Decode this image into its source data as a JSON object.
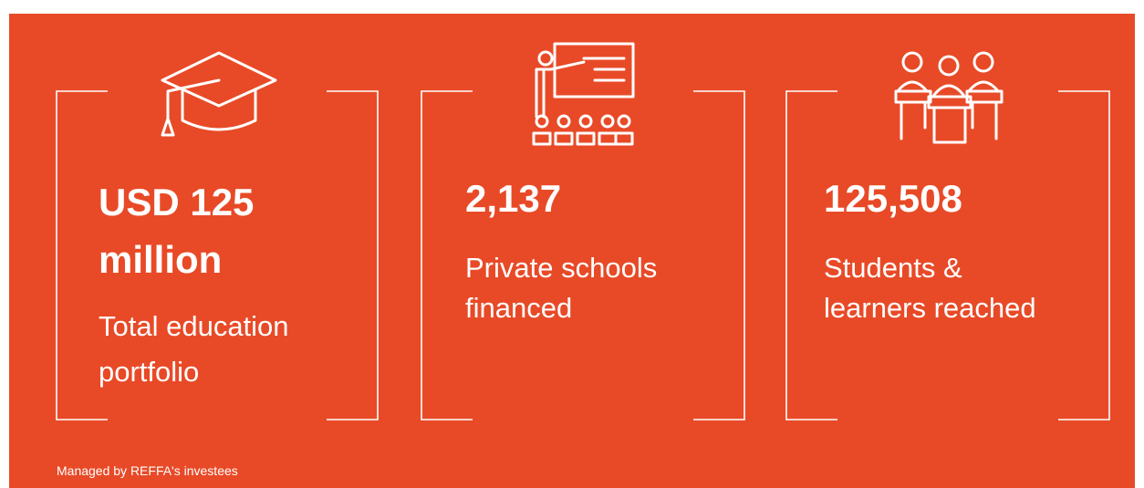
{
  "stats": [
    {
      "value_lines": [
        "USD 125",
        "million"
      ],
      "label_lines": [
        "Total education",
        "portfolio"
      ]
    },
    {
      "value_lines": [
        "2,137"
      ],
      "label_lines": [
        "Private schools",
        "financed"
      ]
    },
    {
      "value_lines": [
        "125,508"
      ],
      "label_lines": [
        "Students &",
        "learners reached"
      ]
    }
  ],
  "footnote": "Managed by REFFA's investees"
}
